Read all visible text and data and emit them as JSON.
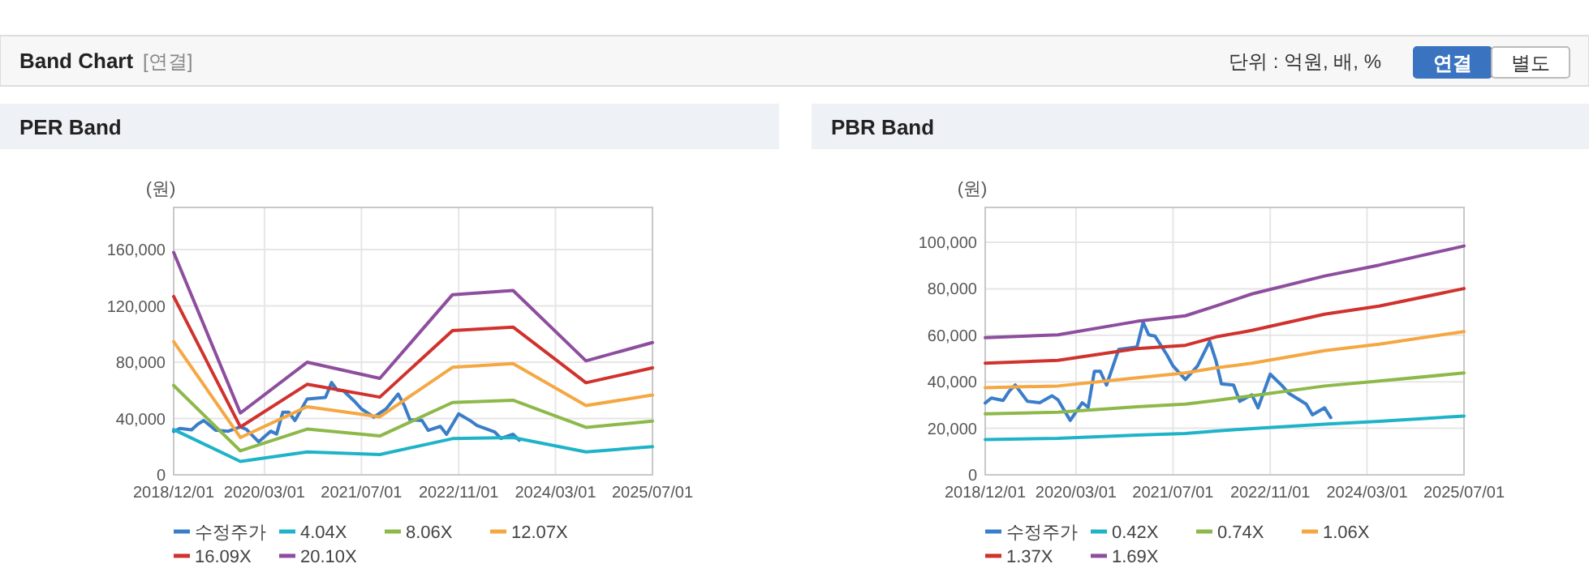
{
  "chart_data": [
    {
      "type": "other",
      "title": "Band Chart",
      "annotations": [
        "[연결]",
        "단위 : 억원, 배, %",
        "연결",
        "별도"
      ]
    },
    {
      "type": "line",
      "title": "PER Band",
      "ylabel": "(원)",
      "xlim": [
        "2018-12-01",
        "2025-07-01"
      ],
      "xticks": [
        {
          "value": "2018-12-01",
          "label": "2018/12/01"
        },
        {
          "value": "2020-03-01",
          "label": "2020/03/01"
        },
        {
          "value": "2021-07-01",
          "label": "2021/07/01"
        },
        {
          "value": "2022-11-01",
          "label": "2022/11/01"
        },
        {
          "value": "2024-03-01",
          "label": "2024/03/01"
        },
        {
          "value": "2025-07-01",
          "label": "2025/07/01"
        }
      ],
      "ylim": [
        0,
        190000
      ],
      "yticks": [
        {
          "value": 0,
          "label": "0"
        },
        {
          "value": 40000,
          "label": "40,000"
        },
        {
          "value": 80000,
          "label": "80,000"
        },
        {
          "value": 120000,
          "label": "120,000"
        },
        {
          "value": 160000,
          "label": "160,000"
        }
      ],
      "grid": true,
      "legend": "bottom",
      "series": [
        {
          "name": "수정주가",
          "color": "#3a7dc9",
          "x": [
            "2018-12",
            "2019-01",
            "2019-03",
            "2019-04",
            "2019-05",
            "2019-07",
            "2019-09",
            "2019-11",
            "2019-12",
            "2020-02",
            "2020-04",
            "2020-05",
            "2020-06",
            "2020-07",
            "2020-08",
            "2020-10",
            "2021-01",
            "2021-02",
            "2021-03",
            "2021-04",
            "2021-06",
            "2021-07",
            "2021-09",
            "2021-11",
            "2022-01",
            "2022-02",
            "2022-03",
            "2022-05",
            "2022-06",
            "2022-08",
            "2022-09",
            "2022-11",
            "2023-01",
            "2023-02",
            "2023-05",
            "2023-06",
            "2023-08",
            "2023-09"
          ],
          "values": [
            30900,
            33000,
            32000,
            36000,
            38600,
            31600,
            31000,
            34000,
            32300,
            23400,
            31000,
            29000,
            44500,
            44500,
            38600,
            53900,
            55000,
            65600,
            60200,
            59700,
            51500,
            46800,
            41000,
            46800,
            57400,
            49200,
            39100,
            38600,
            31600,
            34400,
            28800,
            43300,
            38200,
            35100,
            30400,
            25800,
            28800,
            24600
          ]
        },
        {
          "name": "4.04X",
          "color": "#1fb3c8",
          "x": [
            "2018-12",
            "2019-11",
            "2020-10",
            "2021-10",
            "2022-10",
            "2023-08",
            "2024-08",
            "2025-07"
          ],
          "values": [
            32200,
            9500,
            16300,
            14400,
            25700,
            26500,
            16300,
            20000
          ]
        },
        {
          "name": "8.06X",
          "color": "#8db84a",
          "x": [
            "2018-12",
            "2019-11",
            "2020-10",
            "2021-10",
            "2022-10",
            "2023-08",
            "2024-08",
            "2025-07"
          ],
          "values": [
            63500,
            17000,
            32500,
            27600,
            51400,
            53000,
            33700,
            38200
          ]
        },
        {
          "name": "12.07X",
          "color": "#f5a742",
          "x": [
            "2018-12",
            "2019-11",
            "2020-10",
            "2021-10",
            "2022-10",
            "2023-08",
            "2024-08",
            "2025-07"
          ],
          "values": [
            94600,
            26500,
            48400,
            41200,
            76400,
            79000,
            49200,
            56700
          ]
        },
        {
          "name": "16.09X",
          "color": "#d0322d",
          "x": [
            "2018-12",
            "2019-11",
            "2020-10",
            "2021-10",
            "2022-10",
            "2023-08",
            "2024-08",
            "2025-07"
          ],
          "values": [
            126700,
            34000,
            64300,
            55200,
            102500,
            105000,
            65400,
            76000
          ]
        },
        {
          "name": "20.10X",
          "color": "#8e4e9e",
          "x": [
            "2018-12",
            "2019-11",
            "2020-10",
            "2021-10",
            "2022-10",
            "2023-08",
            "2024-08",
            "2025-07"
          ],
          "values": [
            158000,
            43900,
            80000,
            68500,
            128000,
            131000,
            81000,
            94000
          ]
        }
      ]
    },
    {
      "type": "line",
      "title": "PBR Band",
      "ylabel": "(원)",
      "xlim": [
        "2018-12-01",
        "2025-07-01"
      ],
      "xticks": [
        {
          "value": "2018-12-01",
          "label": "2018/12/01"
        },
        {
          "value": "2020-03-01",
          "label": "2020/03/01"
        },
        {
          "value": "2021-07-01",
          "label": "2021/07/01"
        },
        {
          "value": "2022-11-01",
          "label": "2022/11/01"
        },
        {
          "value": "2024-03-01",
          "label": "2024/03/01"
        },
        {
          "value": "2025-07-01",
          "label": "2025/07/01"
        }
      ],
      "ylim": [
        0,
        115000
      ],
      "yticks": [
        {
          "value": 0,
          "label": "0"
        },
        {
          "value": 20000,
          "label": "20,000"
        },
        {
          "value": 40000,
          "label": "40,000"
        },
        {
          "value": 60000,
          "label": "60,000"
        },
        {
          "value": 80000,
          "label": "80,000"
        },
        {
          "value": 100000,
          "label": "100,000"
        }
      ],
      "grid": true,
      "legend": "bottom",
      "series": [
        {
          "name": "수정주가",
          "color": "#3a7dc9",
          "x": [
            "2018-12",
            "2019-01",
            "2019-03",
            "2019-04",
            "2019-05",
            "2019-07",
            "2019-09",
            "2019-11",
            "2019-12",
            "2020-02",
            "2020-04",
            "2020-05",
            "2020-06",
            "2020-07",
            "2020-08",
            "2020-10",
            "2021-01",
            "2021-02",
            "2021-03",
            "2021-04",
            "2021-06",
            "2021-07",
            "2021-09",
            "2021-11",
            "2022-01",
            "2022-02",
            "2022-03",
            "2022-05",
            "2022-06",
            "2022-08",
            "2022-09",
            "2022-11",
            "2023-01",
            "2023-02",
            "2023-05",
            "2023-06",
            "2023-08",
            "2023-09"
          ],
          "values": [
            30900,
            33000,
            32000,
            36000,
            38600,
            31600,
            31000,
            34000,
            32300,
            23400,
            31000,
            29000,
            44500,
            44500,
            38600,
            53900,
            55000,
            65600,
            60200,
            59700,
            51500,
            46800,
            41000,
            46800,
            57400,
            49200,
            39100,
            38600,
            31600,
            34400,
            28800,
            43300,
            38200,
            35100,
            30400,
            25800,
            28800,
            24600
          ]
        },
        {
          "name": "0.42X",
          "color": "#1fb3c8",
          "x": [
            "2018-12",
            "2019-12",
            "2021-01",
            "2021-09",
            "2022-02",
            "2022-08",
            "2023-08",
            "2024-05",
            "2025-07"
          ],
          "values": [
            15200,
            15700,
            17100,
            17800,
            18800,
            19900,
            21800,
            23000,
            25300
          ]
        },
        {
          "name": "0.74X",
          "color": "#8db84a",
          "x": [
            "2018-12",
            "2019-12",
            "2021-01",
            "2021-09",
            "2022-02",
            "2022-08",
            "2023-08",
            "2024-05",
            "2025-07"
          ],
          "values": [
            26200,
            26900,
            29300,
            30400,
            32000,
            34000,
            38200,
            40300,
            43800
          ]
        },
        {
          "name": "1.06X",
          "color": "#f5a742",
          "x": [
            "2018-12",
            "2019-12",
            "2021-01",
            "2021-09",
            "2022-02",
            "2022-08",
            "2023-08",
            "2024-05",
            "2025-07"
          ],
          "values": [
            37500,
            38200,
            41700,
            43800,
            46000,
            48000,
            53400,
            56200,
            61600
          ]
        },
        {
          "name": "1.37X",
          "color": "#d0322d",
          "x": [
            "2018-12",
            "2019-12",
            "2021-01",
            "2021-09",
            "2022-02",
            "2022-08",
            "2023-08",
            "2024-05",
            "2025-07"
          ],
          "values": [
            48000,
            49200,
            54300,
            55700,
            59300,
            62100,
            69100,
            72600,
            80100
          ]
        },
        {
          "name": "1.69X",
          "color": "#8e4e9e",
          "x": [
            "2018-12",
            "2019-12",
            "2021-01",
            "2021-09",
            "2022-02",
            "2022-08",
            "2023-08",
            "2024-05",
            "2025-07"
          ],
          "values": [
            59000,
            60200,
            66000,
            68400,
            72600,
            77800,
            85500,
            90200,
            98400
          ]
        }
      ]
    }
  ]
}
